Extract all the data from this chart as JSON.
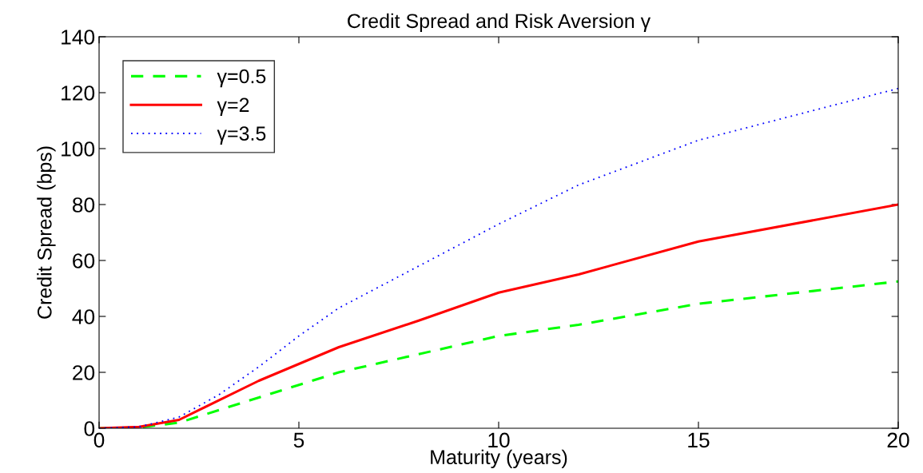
{
  "chart_data": {
    "type": "line",
    "title": "Credit Spread and Risk Aversion γ",
    "xlabel": "Maturity (years)",
    "ylabel": "Credit Spread (bps)",
    "xlim": [
      0,
      20
    ],
    "xticks": [
      0,
      5,
      10,
      15,
      20
    ],
    "ylim": [
      0,
      140
    ],
    "yticks": [
      0,
      20,
      40,
      60,
      80,
      100,
      120,
      140
    ],
    "grid": false,
    "legend": "top left",
    "series": [
      {
        "name": "γ=0.5",
        "color": "#00ff00",
        "line_style": "dashed",
        "x": [
          0,
          1,
          2,
          4,
          6,
          8,
          10,
          12,
          15,
          20
        ],
        "values": [
          0,
          0.3,
          2,
          11,
          20,
          26.5,
          33,
          37,
          44.5,
          52.5
        ]
      },
      {
        "name": "γ=2",
        "color": "#ff0000",
        "line_style": "solid",
        "x": [
          0,
          1,
          2,
          4,
          6,
          8,
          10,
          12,
          15,
          20
        ],
        "values": [
          0,
          0.5,
          3,
          17,
          29,
          38.5,
          48.5,
          55,
          66.8,
          80
        ]
      },
      {
        "name": "γ=3.5",
        "color": "#0000ff",
        "line_style": "dotted",
        "x": [
          0,
          1,
          2,
          3,
          4,
          5,
          6,
          8,
          10,
          12,
          15,
          20
        ],
        "values": [
          0,
          0.5,
          4,
          12,
          22,
          33,
          43,
          58,
          73,
          87,
          103,
          121.5
        ]
      }
    ]
  }
}
